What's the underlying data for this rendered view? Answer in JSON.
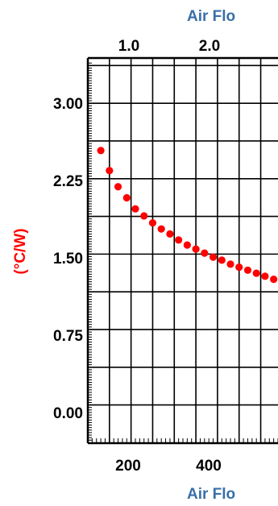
{
  "chart_data": {
    "type": "scatter",
    "title": "",
    "top_axis_title": "Air Flo",
    "top_axis_ticks": [
      "1.0",
      "2.0"
    ],
    "bottom_axis_title": "Air Flo",
    "ylabel": "(°C/W)",
    "xlim": [
      100,
      540
    ],
    "ylim": [
      -0.38,
      3.45
    ],
    "x_ticks": [
      200,
      400
    ],
    "x_tick_labels": [
      "200",
      "400"
    ],
    "y_ticks": [
      0.0,
      0.75,
      1.5,
      2.25,
      3.0
    ],
    "y_tick_labels": [
      "0.00",
      "0.75",
      "1.50",
      "2.25",
      "3.00"
    ],
    "grid": true,
    "series_color": "#ff0000",
    "text_color_top": "#3a6fa8",
    "series": [
      {
        "name": "",
        "x": [
          130,
          150,
          170,
          190,
          210,
          230,
          250,
          270,
          290,
          310,
          330,
          350,
          370,
          390,
          410,
          430,
          450,
          470,
          490,
          510,
          530
        ],
        "y": [
          2.53,
          2.33,
          2.17,
          2.06,
          1.95,
          1.88,
          1.81,
          1.75,
          1.7,
          1.64,
          1.59,
          1.55,
          1.51,
          1.47,
          1.44,
          1.4,
          1.37,
          1.34,
          1.31,
          1.28,
          1.25
        ]
      }
    ]
  }
}
